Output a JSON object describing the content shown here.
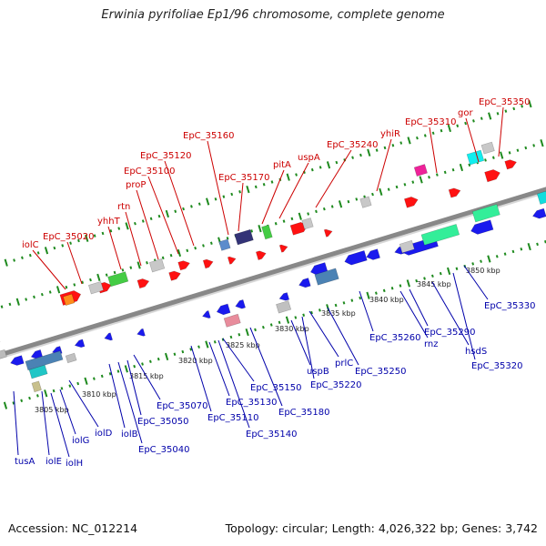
{
  "title": "Erwinia pyrifoliae Ep1/96 chromosome, complete genome",
  "footer": {
    "accession": "Accession: NC_012214",
    "topology": "Topology: circular; Length: 4,026,322 bp; Genes: 3,742"
  },
  "kbp_ticks": [
    {
      "label": "3805 kbp",
      "pos": 3805
    },
    {
      "label": "3810 kbp",
      "pos": 3810
    },
    {
      "label": "3815 kbp",
      "pos": 3815
    },
    {
      "label": "3820 kbp",
      "pos": 3820
    },
    {
      "label": "3825 kbp",
      "pos": 3825
    },
    {
      "label": "3830 kbp",
      "pos": 3830
    },
    {
      "label": "3835 kbp",
      "pos": 3835
    },
    {
      "label": "3840 kbp",
      "pos": 3840
    },
    {
      "label": "3845 kbp",
      "pos": 3845
    },
    {
      "label": "3850 kbp",
      "pos": 3850
    }
  ],
  "top_labels": [
    "iolC",
    "EpC_35020",
    "yhhT",
    "rtn",
    "proP",
    "EpC_35100",
    "EpC_35120",
    "EpC_35160",
    "EpC_35170",
    "pitA",
    "uspA",
    "EpC_35240",
    "yhiR",
    "EpC_35310",
    "gor",
    "EpC_35350"
  ],
  "bottom_labels": [
    "tusA",
    "iolE",
    "iolH",
    "iolG",
    "iolD",
    "iolB",
    "EpC_35040",
    "EpC_35050",
    "EpC_35070",
    "EpC_35110",
    "EpC_35130",
    "EpC_35140",
    "EpC_35150",
    "EpC_35180",
    "uspB",
    "EpC_35220",
    "prlC",
    "EpC_35250",
    "EpC_35260",
    "rnz",
    "EpC_35290",
    "hsdS",
    "EpC_35320",
    "EpC_35330"
  ],
  "colors": {
    "top_label": "#cc0000",
    "bottom_label": "#0000aa",
    "plus_strand": "#ff1111",
    "minus_strand": "#1a1aee",
    "backbone": "#888888",
    "tick_green": "#1e8a1e"
  }
}
